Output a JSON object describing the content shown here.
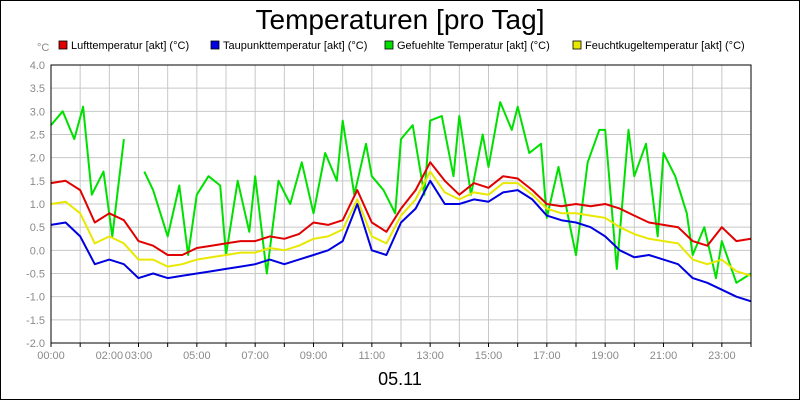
{
  "chart_data": {
    "type": "line",
    "title": "Temperaturen [pro Tag]",
    "ylabel": "°C",
    "xlabel": "05.11",
    "ylim": [
      -2.0,
      4.0
    ],
    "xlim": [
      0,
      24
    ],
    "grid": true,
    "legend_position": "top",
    "y_ticks": [
      {
        "value": 4.0,
        "label": "4.0"
      },
      {
        "value": 3.5,
        "label": "3.5"
      },
      {
        "value": 3.0,
        "label": "3.0"
      },
      {
        "value": 2.5,
        "label": "2.5"
      },
      {
        "value": 2.0,
        "label": "2.0"
      },
      {
        "value": 1.5,
        "label": "1.5"
      },
      {
        "value": 1.0,
        "label": "1.0"
      },
      {
        "value": 0.5,
        "label": "0.5"
      },
      {
        "value": 0.0,
        "label": "0.0"
      },
      {
        "value": -0.5,
        "label": "-0.5"
      },
      {
        "value": -1.0,
        "label": "-1.0"
      },
      {
        "value": -1.5,
        "label": "-1.5"
      },
      {
        "value": -2.0,
        "label": "-2.0"
      }
    ],
    "x_ticks": [
      {
        "value": 0,
        "label": "00:00"
      },
      {
        "value": 2,
        "label": "02:00"
      },
      {
        "value": 3,
        "label": "03:00"
      },
      {
        "value": 5,
        "label": "05:00"
      },
      {
        "value": 7,
        "label": "07:00"
      },
      {
        "value": 9,
        "label": "09:00"
      },
      {
        "value": 11,
        "label": "11:00"
      },
      {
        "value": 13,
        "label": "13:00"
      },
      {
        "value": 15,
        "label": "15:00"
      },
      {
        "value": 17,
        "label": "17:00"
      },
      {
        "value": 19,
        "label": "19:00"
      },
      {
        "value": 21,
        "label": "21:00"
      },
      {
        "value": 23,
        "label": "23:00"
      }
    ],
    "series": [
      {
        "name": "Lufttemperatur [akt] (°C)",
        "color": "#e00000",
        "points": [
          [
            0,
            1.45
          ],
          [
            0.5,
            1.5
          ],
          [
            1,
            1.3
          ],
          [
            1.5,
            0.6
          ],
          [
            2,
            0.8
          ],
          [
            2.5,
            0.65
          ],
          [
            3,
            0.2
          ],
          [
            3.5,
            0.1
          ],
          [
            4,
            -0.1
          ],
          [
            4.5,
            -0.1
          ],
          [
            5,
            0.05
          ],
          [
            5.5,
            0.1
          ],
          [
            6,
            0.15
          ],
          [
            6.5,
            0.2
          ],
          [
            7,
            0.2
          ],
          [
            7.5,
            0.3
          ],
          [
            8,
            0.25
          ],
          [
            8.5,
            0.35
          ],
          [
            9,
            0.6
          ],
          [
            9.5,
            0.55
          ],
          [
            10,
            0.65
          ],
          [
            10.5,
            1.3
          ],
          [
            11,
            0.6
          ],
          [
            11.5,
            0.4
          ],
          [
            12,
            0.9
          ],
          [
            12.5,
            1.3
          ],
          [
            13,
            1.9
          ],
          [
            13.5,
            1.5
          ],
          [
            14,
            1.2
          ],
          [
            14.5,
            1.45
          ],
          [
            15,
            1.35
          ],
          [
            15.5,
            1.6
          ],
          [
            16,
            1.55
          ],
          [
            16.5,
            1.3
          ],
          [
            17,
            1.0
          ],
          [
            17.5,
            0.95
          ],
          [
            18,
            1.0
          ],
          [
            18.5,
            0.95
          ],
          [
            19,
            1.0
          ],
          [
            19.5,
            0.9
          ],
          [
            20,
            0.75
          ],
          [
            20.5,
            0.6
          ],
          [
            21,
            0.55
          ],
          [
            21.5,
            0.5
          ],
          [
            22,
            0.2
          ],
          [
            22.5,
            0.1
          ],
          [
            23,
            0.5
          ],
          [
            23.5,
            0.2
          ],
          [
            24,
            0.25
          ]
        ]
      },
      {
        "name": "Taupunkttemperatur [akt] (°C)",
        "color": "#0000e0",
        "points": [
          [
            0,
            0.55
          ],
          [
            0.5,
            0.6
          ],
          [
            1,
            0.3
          ],
          [
            1.5,
            -0.3
          ],
          [
            2,
            -0.2
          ],
          [
            2.5,
            -0.3
          ],
          [
            3,
            -0.6
          ],
          [
            3.5,
            -0.5
          ],
          [
            4,
            -0.6
          ],
          [
            4.5,
            -0.55
          ],
          [
            5,
            -0.5
          ],
          [
            5.5,
            -0.45
          ],
          [
            6,
            -0.4
          ],
          [
            6.5,
            -0.35
          ],
          [
            7,
            -0.3
          ],
          [
            7.5,
            -0.2
          ],
          [
            8,
            -0.3
          ],
          [
            8.5,
            -0.2
          ],
          [
            9,
            -0.1
          ],
          [
            9.5,
            0.0
          ],
          [
            10,
            0.2
          ],
          [
            10.5,
            1.0
          ],
          [
            11,
            0.0
          ],
          [
            11.5,
            -0.1
          ],
          [
            12,
            0.6
          ],
          [
            12.5,
            0.9
          ],
          [
            13,
            1.5
          ],
          [
            13.5,
            1.0
          ],
          [
            14,
            1.0
          ],
          [
            14.5,
            1.1
          ],
          [
            15,
            1.05
          ],
          [
            15.5,
            1.25
          ],
          [
            16,
            1.3
          ],
          [
            16.5,
            1.1
          ],
          [
            17,
            0.75
          ],
          [
            17.5,
            0.65
          ],
          [
            18,
            0.6
          ],
          [
            18.5,
            0.5
          ],
          [
            19,
            0.3
          ],
          [
            19.5,
            0.0
          ],
          [
            20,
            -0.15
          ],
          [
            20.5,
            -0.1
          ],
          [
            21,
            -0.2
          ],
          [
            21.5,
            -0.3
          ],
          [
            22,
            -0.6
          ],
          [
            22.5,
            -0.7
          ],
          [
            23,
            -0.85
          ],
          [
            23.5,
            -1.0
          ],
          [
            24,
            -1.1
          ]
        ]
      },
      {
        "name": "Gefuehlte Temperatur [akt] (°C)",
        "color": "#00e000",
        "points": [
          [
            0,
            2.7
          ],
          [
            0.4,
            3.0
          ],
          [
            0.8,
            2.4
          ],
          [
            1.1,
            3.1
          ],
          [
            1.4,
            1.2
          ],
          [
            1.8,
            1.7
          ],
          [
            2.1,
            0.3
          ],
          [
            2.5,
            2.4
          ],
          [
            2.7,
            null
          ],
          [
            3.2,
            1.7
          ],
          [
            3.5,
            1.3
          ],
          [
            4,
            0.3
          ],
          [
            4.4,
            1.4
          ],
          [
            4.7,
            -0.1
          ],
          [
            5,
            1.2
          ],
          [
            5.4,
            1.6
          ],
          [
            5.8,
            1.4
          ],
          [
            6,
            -0.1
          ],
          [
            6.4,
            1.5
          ],
          [
            6.8,
            0.4
          ],
          [
            7,
            1.6
          ],
          [
            7.4,
            -0.5
          ],
          [
            7.8,
            1.5
          ],
          [
            8.2,
            1.0
          ],
          [
            8.6,
            1.9
          ],
          [
            9,
            0.8
          ],
          [
            9.4,
            2.1
          ],
          [
            9.8,
            1.5
          ],
          [
            10,
            2.8
          ],
          [
            10.4,
            1.2
          ],
          [
            10.8,
            2.3
          ],
          [
            11,
            1.6
          ],
          [
            11.4,
            1.3
          ],
          [
            11.8,
            0.8
          ],
          [
            12,
            2.4
          ],
          [
            12.4,
            2.7
          ],
          [
            12.8,
            1.2
          ],
          [
            13,
            2.8
          ],
          [
            13.4,
            2.9
          ],
          [
            13.8,
            1.6
          ],
          [
            14,
            2.9
          ],
          [
            14.4,
            1.2
          ],
          [
            14.8,
            2.5
          ],
          [
            15,
            1.8
          ],
          [
            15.4,
            3.2
          ],
          [
            15.8,
            2.6
          ],
          [
            16,
            3.1
          ],
          [
            16.4,
            2.1
          ],
          [
            16.8,
            2.3
          ],
          [
            17,
            0.7
          ],
          [
            17.4,
            1.8
          ],
          [
            17.8,
            0.5
          ],
          [
            18,
            -0.1
          ],
          [
            18.4,
            1.9
          ],
          [
            18.8,
            2.6
          ],
          [
            19,
            2.6
          ],
          [
            19.4,
            -0.4
          ],
          [
            19.8,
            2.6
          ],
          [
            20,
            1.6
          ],
          [
            20.4,
            2.3
          ],
          [
            20.8,
            0.3
          ],
          [
            21,
            2.1
          ],
          [
            21.4,
            1.6
          ],
          [
            21.8,
            0.8
          ],
          [
            22,
            -0.1
          ],
          [
            22.4,
            0.5
          ],
          [
            22.8,
            -0.6
          ],
          [
            23,
            0.2
          ],
          [
            23.5,
            -0.7
          ],
          [
            24,
            -0.5
          ]
        ]
      },
      {
        "name": "Feuchtkugeltemperatur [akt] (°C)",
        "color": "#e8e800",
        "points": [
          [
            0,
            1.0
          ],
          [
            0.5,
            1.05
          ],
          [
            1,
            0.8
          ],
          [
            1.5,
            0.15
          ],
          [
            2,
            0.3
          ],
          [
            2.5,
            0.15
          ],
          [
            3,
            -0.2
          ],
          [
            3.5,
            -0.2
          ],
          [
            4,
            -0.35
          ],
          [
            4.5,
            -0.3
          ],
          [
            5,
            -0.2
          ],
          [
            5.5,
            -0.15
          ],
          [
            6,
            -0.1
          ],
          [
            6.5,
            -0.05
          ],
          [
            7,
            -0.05
          ],
          [
            7.5,
            0.05
          ],
          [
            8,
            0.0
          ],
          [
            8.5,
            0.1
          ],
          [
            9,
            0.25
          ],
          [
            9.5,
            0.3
          ],
          [
            10,
            0.45
          ],
          [
            10.5,
            1.1
          ],
          [
            11,
            0.3
          ],
          [
            11.5,
            0.15
          ],
          [
            12,
            0.75
          ],
          [
            12.5,
            1.1
          ],
          [
            13,
            1.7
          ],
          [
            13.5,
            1.25
          ],
          [
            14,
            1.1
          ],
          [
            14.5,
            1.25
          ],
          [
            15,
            1.2
          ],
          [
            15.5,
            1.45
          ],
          [
            16,
            1.45
          ],
          [
            16.5,
            1.2
          ],
          [
            17,
            0.9
          ],
          [
            17.5,
            0.8
          ],
          [
            18,
            0.8
          ],
          [
            18.5,
            0.75
          ],
          [
            19,
            0.7
          ],
          [
            19.5,
            0.5
          ],
          [
            20,
            0.35
          ],
          [
            20.5,
            0.25
          ],
          [
            21,
            0.2
          ],
          [
            21.5,
            0.15
          ],
          [
            22,
            -0.2
          ],
          [
            22.5,
            -0.3
          ],
          [
            23,
            -0.2
          ],
          [
            23.5,
            -0.45
          ],
          [
            24,
            -0.55
          ]
        ]
      }
    ]
  }
}
